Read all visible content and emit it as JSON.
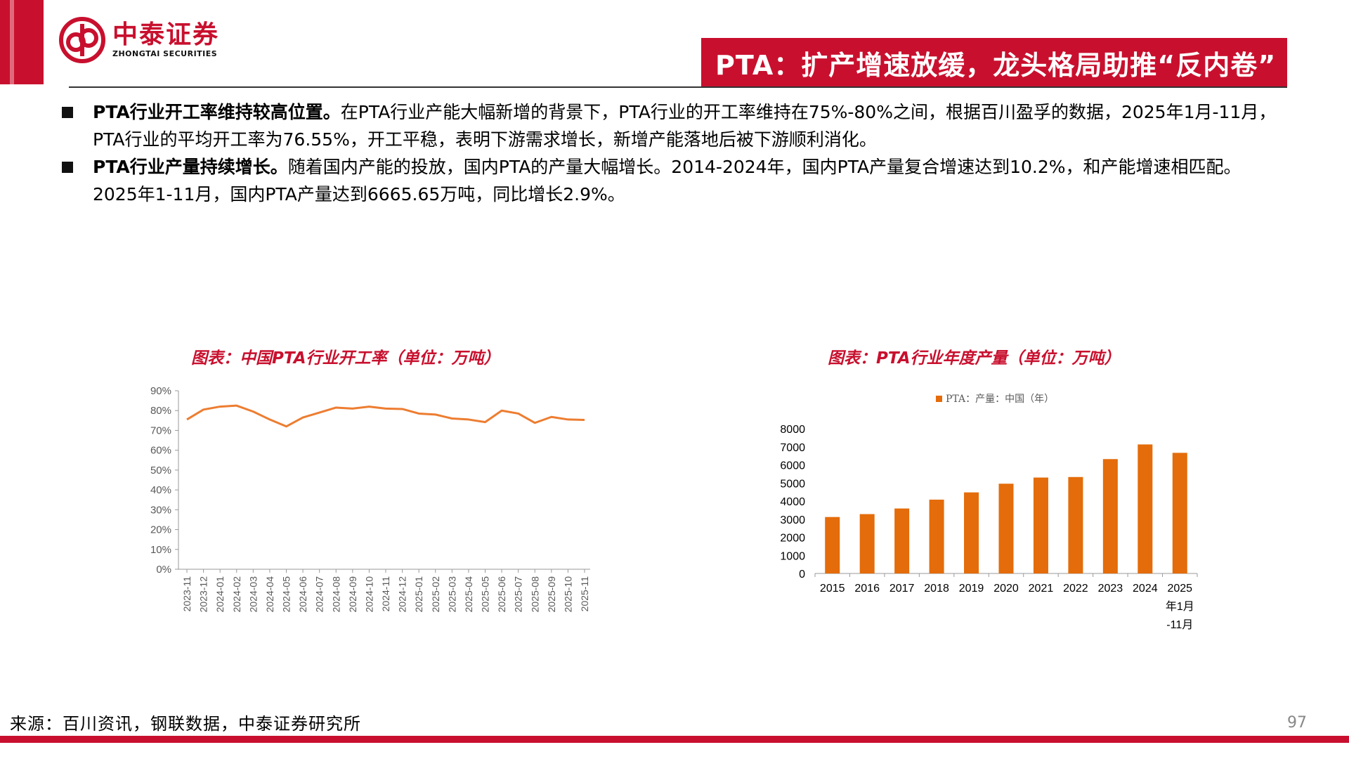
{
  "header": {
    "logo_cn": "中泰证券",
    "logo_en": "ZHONGTAI SECURITIES",
    "title": "PTA：扩产增速放缓，龙头格局助推“反内卷”"
  },
  "bullets": [
    {
      "lead": "PTA行业开工率维持较高位置。",
      "text": "在PTA行业产能大幅新增的背景下，PTA行业的开工率维持在75%-80%之间，根据百川盈孚的数据，2025年1月-11月，PTA行业的平均开工率为76.55%，开工平稳，表明下游需求增长，新增产能落地后被下游顺利消化。"
    },
    {
      "lead": "PTA行业产量持续增长。",
      "text": "随着国内产能的投放，国内PTA的产量大幅增长。2014-2024年，国内PTA产量复合增速达到10.2%，和产能增速相匹配。2025年1-11月，国内PTA产量达到6665.65万吨，同比增长2.9%。"
    }
  ],
  "charts": {
    "left_title": "图表：中国PTA行业开工率（单位：万吨）",
    "right_title": "图表：PTA行业年度产量（单位：万吨）"
  },
  "chart_data": [
    {
      "type": "line",
      "title": "图表：中国PTA行业开工率（单位：万吨）",
      "x": [
        "2023-11",
        "2023-12",
        "2024-01",
        "2024-02",
        "2024-03",
        "2024-04",
        "2024-05",
        "2024-06",
        "2024-07",
        "2024-08",
        "2024-09",
        "2024-10",
        "2024-11",
        "2024-12",
        "2025-01",
        "2025-02",
        "2025-03",
        "2025-04",
        "2025-05",
        "2025-06",
        "2025-07",
        "2025-08",
        "2025-09",
        "2025-10",
        "2025-11"
      ],
      "series": [
        {
          "values": [
            75.5,
            80.5,
            82,
            82.5,
            79.5,
            75.5,
            72,
            76.5,
            79,
            81.5,
            81,
            82,
            81,
            80.8,
            78.5,
            78,
            76,
            75.5,
            74.2,
            80,
            78.5,
            73.8,
            76.8,
            75.5,
            75.3
          ],
          "color": "#ed7d31"
        }
      ],
      "yticks": [
        "0%",
        "10%",
        "20%",
        "30%",
        "40%",
        "50%",
        "60%",
        "70%",
        "80%",
        "90%"
      ],
      "ylim": [
        0,
        90
      ],
      "grid": false
    },
    {
      "type": "bar",
      "title": "图表：PTA行业年度产量（单位：万吨）",
      "categories": [
        "2015",
        "2016",
        "2017",
        "2018",
        "2019",
        "2020",
        "2021",
        "2022",
        "2023",
        "2024",
        "2025年1月-11月"
      ],
      "category_lines": [
        [
          "2015"
        ],
        [
          "2016"
        ],
        [
          "2017"
        ],
        [
          "2018"
        ],
        [
          "2019"
        ],
        [
          "2020"
        ],
        [
          "2021"
        ],
        [
          "2022"
        ],
        [
          "2023"
        ],
        [
          "2024"
        ],
        [
          "2025",
          "年1月",
          "-11月"
        ]
      ],
      "series": [
        {
          "name": "PTA：产量：中国（年）",
          "values": [
            3120,
            3280,
            3590,
            4080,
            4480,
            4960,
            5300,
            5330,
            6320,
            7130,
            6665.65
          ],
          "color": "#e46c0a"
        }
      ],
      "ylim": [
        0,
        8000
      ],
      "yticks": [
        "0",
        "1000",
        "2000",
        "3000",
        "4000",
        "5000",
        "6000",
        "7000",
        "8000"
      ],
      "legend": "top"
    }
  ],
  "footer": {
    "source": "来源：百川资讯，钢联数据，中泰证券研究所",
    "page": "97"
  }
}
